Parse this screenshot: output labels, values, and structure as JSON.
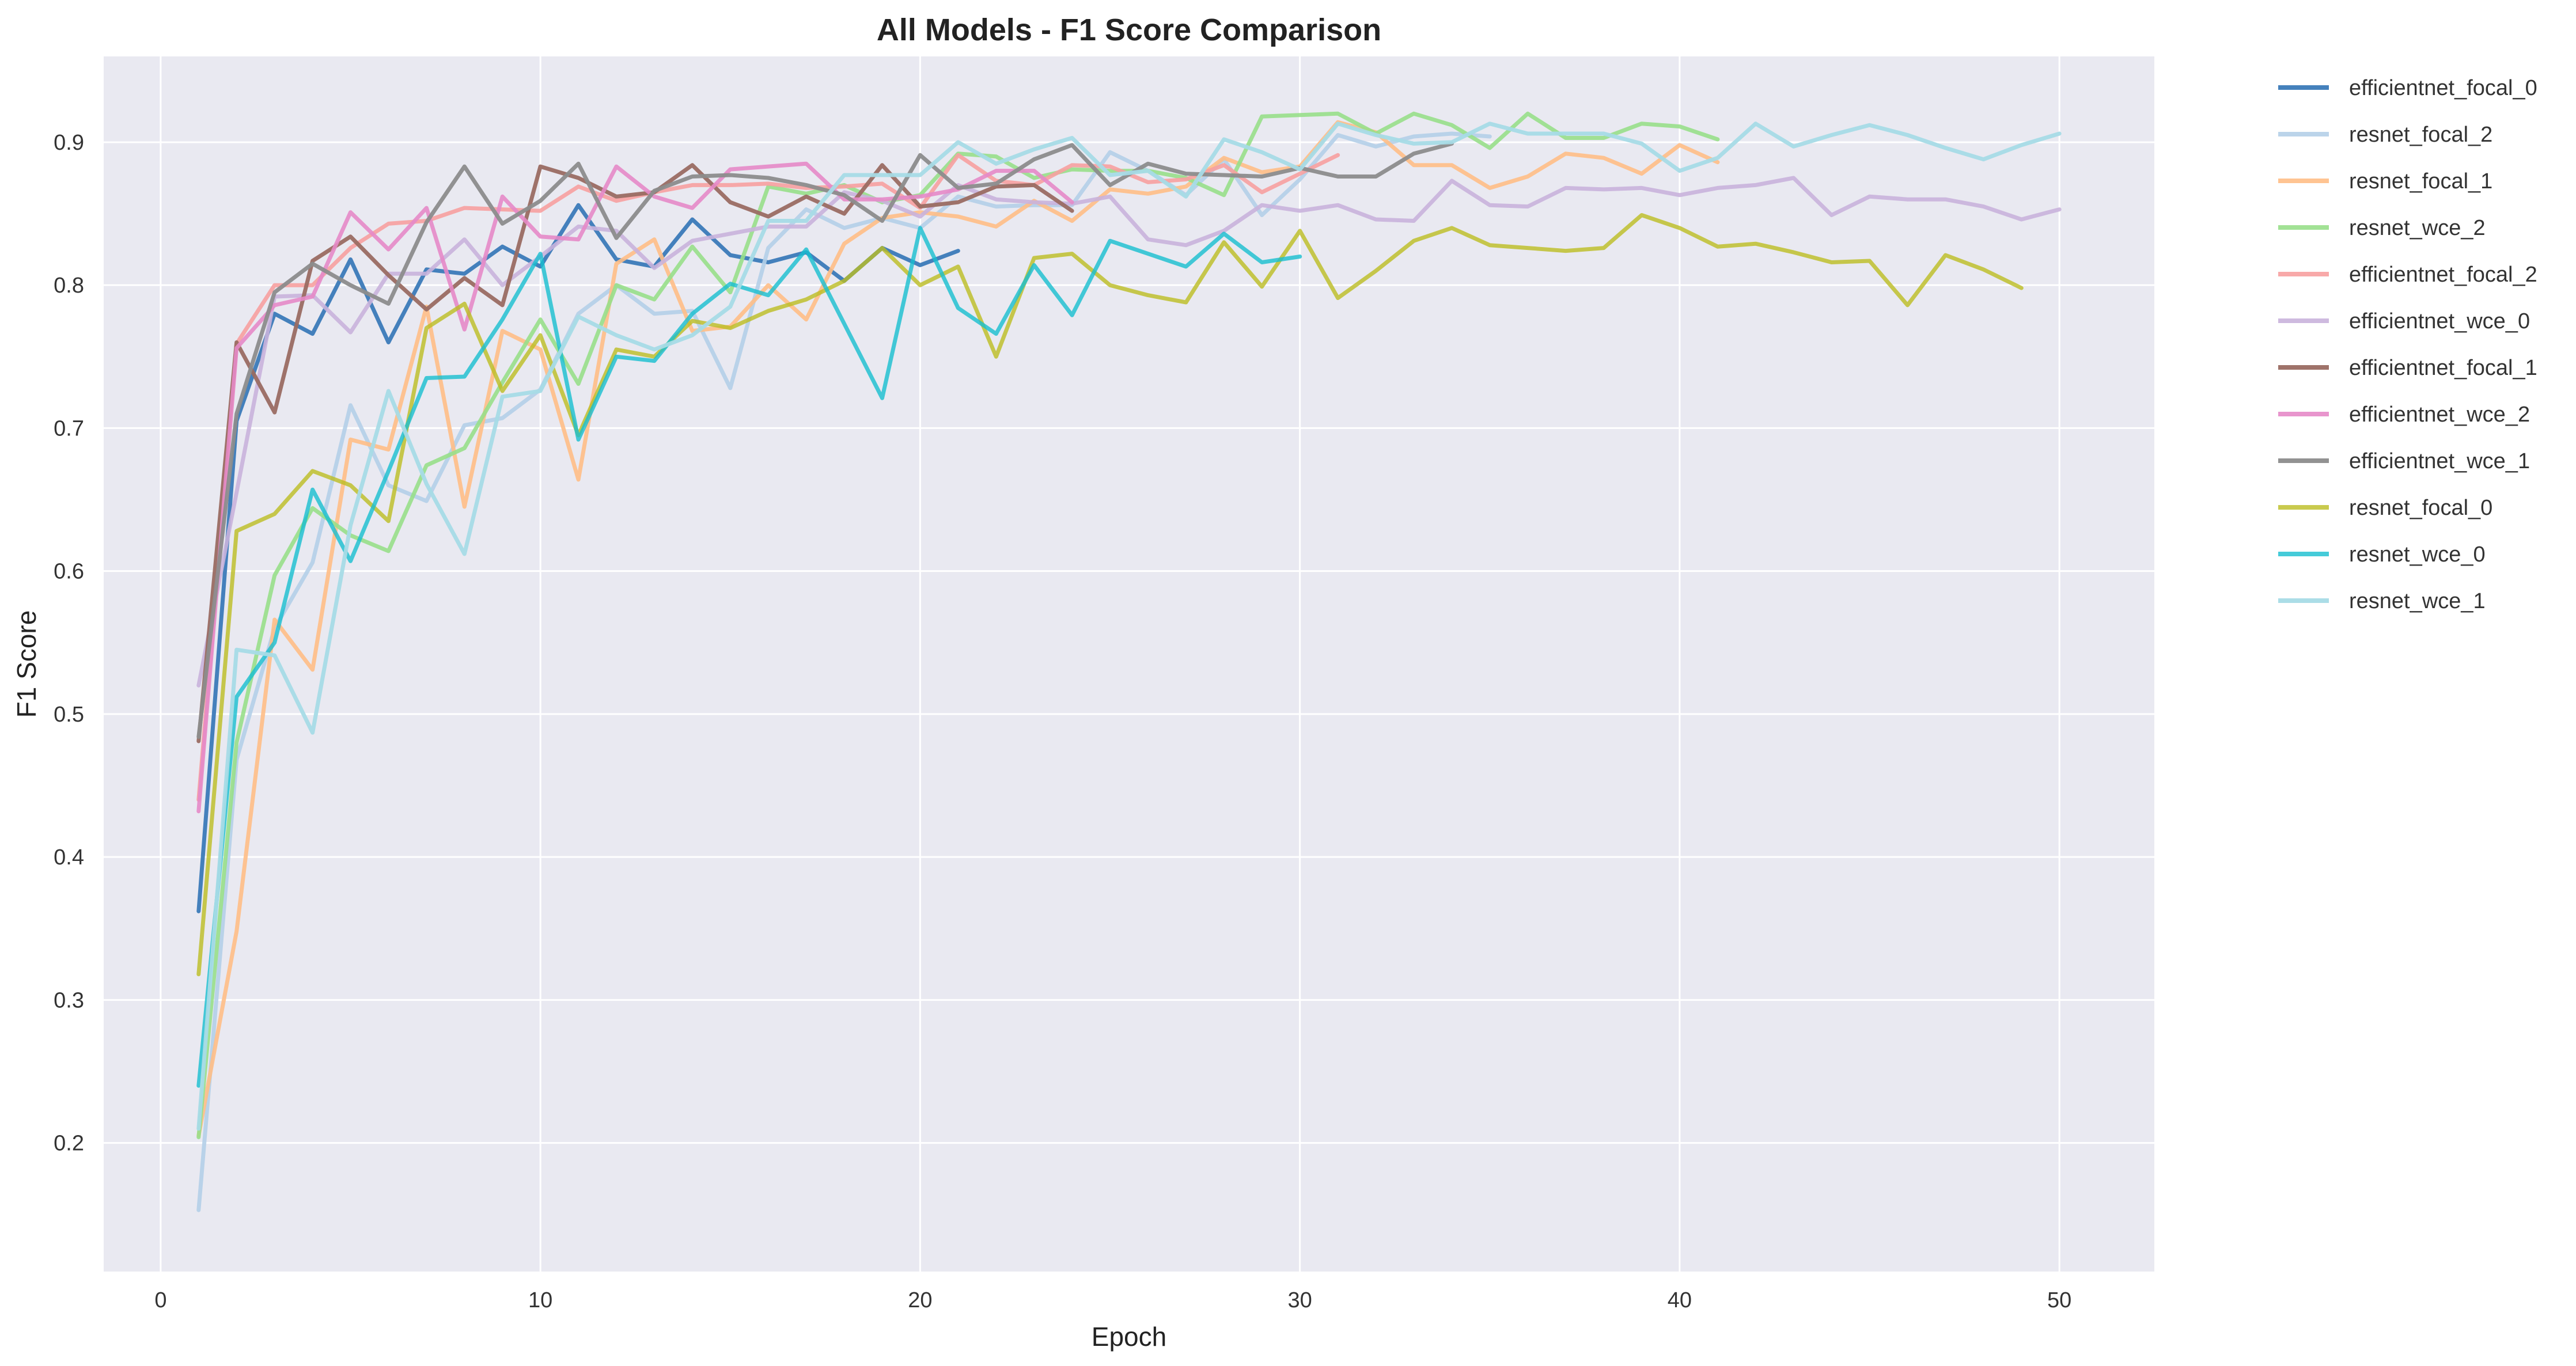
{
  "chart_data": {
    "type": "line",
    "title": "All Models - F1 Score Comparison",
    "xlabel": "Epoch",
    "ylabel": "F1 Score",
    "xlim": [
      -1.5,
      52.5
    ],
    "ylim": [
      0.11,
      0.96
    ],
    "xticks": [
      0,
      10,
      20,
      30,
      40,
      50
    ],
    "yticks": [
      0.2,
      0.3,
      0.4,
      0.5,
      0.6,
      0.7,
      0.8,
      0.9
    ],
    "grid": true,
    "legend_position": "outside-right",
    "plot_background": "#e9e9f1",
    "series": [
      {
        "name": "efficientnet_focal_0",
        "color": "#3b7ab8",
        "alpha": 0.95,
        "x_start": 1,
        "values": [
          0.362,
          0.705,
          0.78,
          0.766,
          0.818,
          0.76,
          0.811,
          0.808,
          0.827,
          0.813,
          0.856,
          0.818,
          0.813,
          0.846,
          0.821,
          0.816,
          0.823,
          0.803,
          0.826,
          0.814,
          0.824
        ]
      },
      {
        "name": "resnet_focal_2",
        "color": "#b4cfe8",
        "alpha": 0.9,
        "x_start": 1,
        "values": [
          0.153,
          0.468,
          0.56,
          0.606,
          0.716,
          0.66,
          0.649,
          0.702,
          0.707,
          0.727,
          0.78,
          0.8,
          0.78,
          0.782,
          0.728,
          0.826,
          0.853,
          0.84,
          0.847,
          0.84,
          0.862,
          0.855,
          0.856,
          0.856,
          0.893,
          0.88,
          0.863,
          0.888,
          0.849,
          0.874,
          0.905,
          0.897,
          0.904,
          0.906,
          0.904
        ]
      },
      {
        "name": "resnet_focal_1",
        "color": "#ffbe86",
        "alpha": 0.9,
        "x_start": 1,
        "values": [
          0.205,
          0.348,
          0.566,
          0.531,
          0.692,
          0.685,
          0.785,
          0.645,
          0.768,
          0.755,
          0.664,
          0.815,
          0.832,
          0.768,
          0.771,
          0.8,
          0.776,
          0.829,
          0.847,
          0.851,
          0.848,
          0.841,
          0.859,
          0.845,
          0.867,
          0.864,
          0.869,
          0.889,
          0.879,
          0.883,
          0.914,
          0.907,
          0.884,
          0.884,
          0.868,
          0.876,
          0.892,
          0.889,
          0.878,
          0.898,
          0.886
        ]
      },
      {
        "name": "resnet_wce_2",
        "color": "#98df8a",
        "alpha": 0.9,
        "x_start": 1,
        "values": [
          0.204,
          0.48,
          0.597,
          0.644,
          0.625,
          0.614,
          0.674,
          0.686,
          0.732,
          0.776,
          0.731,
          0.8,
          0.79,
          0.827,
          0.795,
          0.869,
          0.864,
          0.87,
          0.858,
          0.863,
          0.892,
          0.89,
          0.875,
          0.881,
          0.88,
          0.88,
          0.875,
          0.863,
          0.918,
          0.919,
          0.92,
          0.906,
          0.92,
          0.912,
          0.896,
          0.92,
          0.903,
          0.903,
          0.913,
          0.911,
          0.902
        ]
      },
      {
        "name": "efficientnet_focal_2",
        "color": "#f7a0a0",
        "alpha": 0.9,
        "x_start": 1,
        "values": [
          0.44,
          0.759,
          0.8,
          0.8,
          0.826,
          0.843,
          0.845,
          0.854,
          0.853,
          0.852,
          0.869,
          0.859,
          0.865,
          0.87,
          0.87,
          0.871,
          0.868,
          0.869,
          0.871,
          0.854,
          0.891,
          0.873,
          0.87,
          0.884,
          0.883,
          0.872,
          0.874,
          0.884,
          0.865,
          0.878,
          0.891
        ]
      },
      {
        "name": "efficientnet_wce_0",
        "color": "#c9b3dc",
        "alpha": 0.9,
        "x_start": 1,
        "values": [
          0.52,
          0.655,
          0.792,
          0.793,
          0.767,
          0.808,
          0.808,
          0.832,
          0.8,
          0.82,
          0.841,
          0.838,
          0.812,
          0.831,
          0.836,
          0.841,
          0.841,
          0.865,
          0.859,
          0.848,
          0.87,
          0.86,
          0.858,
          0.857,
          0.862,
          0.832,
          0.828,
          0.838,
          0.856,
          0.852,
          0.856,
          0.846,
          0.845,
          0.873,
          0.856,
          0.855,
          0.868,
          0.867,
          0.868,
          0.863,
          0.868,
          0.87,
          0.875,
          0.849,
          0.862,
          0.86,
          0.86,
          0.855,
          0.846,
          0.853
        ]
      },
      {
        "name": "efficientnet_focal_1",
        "color": "#9a6b62",
        "alpha": 0.95,
        "x_start": 1,
        "values": [
          0.481,
          0.76,
          0.711,
          0.817,
          0.834,
          0.807,
          0.783,
          0.805,
          0.786,
          0.883,
          0.875,
          0.862,
          0.865,
          0.884,
          0.858,
          0.848,
          0.862,
          0.85,
          0.884,
          0.855,
          0.858,
          0.869,
          0.87,
          0.852
        ]
      },
      {
        "name": "efficientnet_wce_2",
        "color": "#e58ac8",
        "alpha": 0.9,
        "x_start": 1,
        "values": [
          0.432,
          0.756,
          0.786,
          0.792,
          0.851,
          0.825,
          0.854,
          0.769,
          0.862,
          0.834,
          0.832,
          0.883,
          0.862,
          0.854,
          0.881,
          0.883,
          0.885,
          0.86,
          0.86,
          0.862,
          0.867,
          0.88,
          0.88,
          0.858
        ]
      },
      {
        "name": "efficientnet_wce_1",
        "color": "#8c8c8c",
        "alpha": 0.95,
        "x_start": 1,
        "values": [
          0.484,
          0.71,
          0.795,
          0.815,
          0.8,
          0.787,
          0.844,
          0.883,
          0.843,
          0.859,
          0.885,
          0.833,
          0.866,
          0.876,
          0.877,
          0.875,
          0.87,
          0.863,
          0.845,
          0.891,
          0.868,
          0.871,
          0.888,
          0.898,
          0.87,
          0.885,
          0.878,
          0.877,
          0.876,
          0.882,
          0.876,
          0.876,
          0.892,
          0.899
        ]
      },
      {
        "name": "resnet_focal_0",
        "color": "#bcbd22",
        "alpha": 0.8,
        "x_start": 1,
        "values": [
          0.318,
          0.628,
          0.64,
          0.67,
          0.66,
          0.635,
          0.77,
          0.787,
          0.726,
          0.765,
          0.695,
          0.755,
          0.75,
          0.775,
          0.77,
          0.782,
          0.79,
          0.803,
          0.826,
          0.8,
          0.813,
          0.75,
          0.819,
          0.822,
          0.8,
          0.793,
          0.788,
          0.83,
          0.799,
          0.838,
          0.791,
          0.81,
          0.831,
          0.84,
          0.828,
          0.826,
          0.824,
          0.826,
          0.849,
          0.84,
          0.827,
          0.829,
          0.823,
          0.816,
          0.817,
          0.786,
          0.821,
          0.811,
          0.798
        ]
      },
      {
        "name": "resnet_wce_0",
        "color": "#17becf",
        "alpha": 0.8,
        "x_start": 1,
        "values": [
          0.24,
          0.512,
          0.55,
          0.657,
          0.607,
          0.67,
          0.735,
          0.736,
          0.776,
          0.822,
          0.692,
          0.75,
          0.747,
          0.78,
          0.801,
          0.793,
          0.825,
          0.773,
          0.721,
          0.84,
          0.784,
          0.766,
          0.814,
          0.779,
          0.831,
          0.822,
          0.813,
          0.836,
          0.816,
          0.82
        ]
      },
      {
        "name": "resnet_wce_1",
        "color": "#a6dbe6",
        "alpha": 0.95,
        "x_start": 1,
        "values": [
          0.21,
          0.545,
          0.541,
          0.487,
          0.632,
          0.726,
          0.661,
          0.612,
          0.722,
          0.726,
          0.778,
          0.765,
          0.755,
          0.765,
          0.785,
          0.845,
          0.845,
          0.877,
          0.877,
          0.877,
          0.9,
          0.885,
          0.895,
          0.903,
          0.877,
          0.88,
          0.862,
          0.902,
          0.893,
          0.881,
          0.913,
          0.905,
          0.899,
          0.9,
          0.913,
          0.906,
          0.906,
          0.906,
          0.899,
          0.88,
          0.889,
          0.913,
          0.897,
          0.905,
          0.912,
          0.905,
          0.896,
          0.888,
          0.898,
          0.906
        ]
      }
    ]
  }
}
